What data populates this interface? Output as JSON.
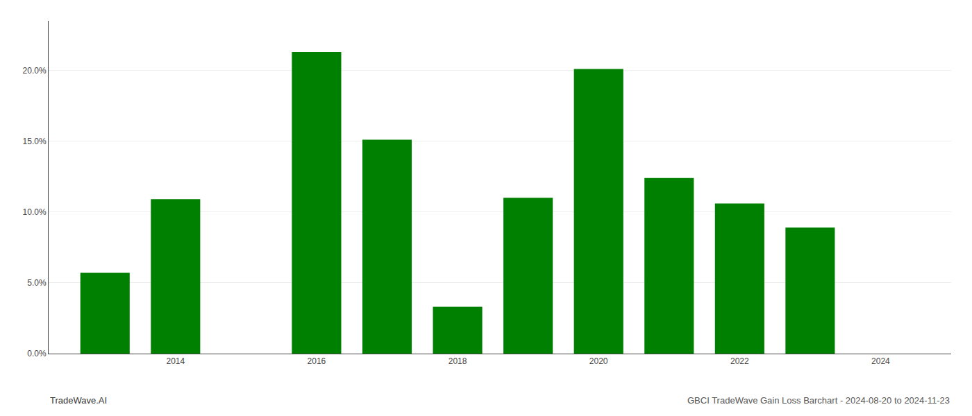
{
  "chart_data": {
    "type": "bar",
    "x": [
      2013,
      2014,
      2016,
      2017,
      2018,
      2019,
      2020,
      2021,
      2022,
      2023
    ],
    "values": [
      0.057,
      0.109,
      0.213,
      0.151,
      0.033,
      0.11,
      0.201,
      0.124,
      0.106,
      0.089
    ],
    "color": "#008000",
    "xlim": [
      2012.2,
      2025.0
    ],
    "xticks": [
      2014,
      2016,
      2018,
      2020,
      2022,
      2024
    ],
    "ylim": [
      0,
      0.235
    ],
    "yticks": [
      {
        "value": 0.0,
        "label": "0.0%"
      },
      {
        "value": 0.05,
        "label": "5.0%"
      },
      {
        "value": 0.1,
        "label": "10.0%"
      },
      {
        "value": 0.15,
        "label": "15.0%"
      },
      {
        "value": 0.2,
        "label": "20.0%"
      }
    ],
    "grid": true,
    "annotations": [
      "TradeWave.AI",
      "GBCI TradeWave Gain Loss Barchart - 2024-08-20 to 2024-11-23"
    ]
  }
}
